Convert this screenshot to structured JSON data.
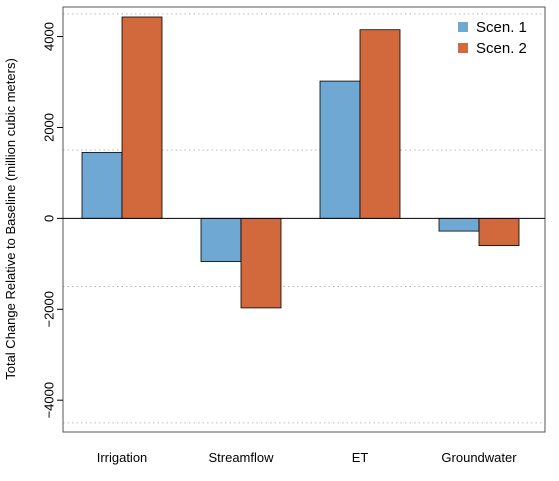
{
  "chart_data": {
    "type": "bar",
    "categories": [
      "Irrigation",
      "Streamflow",
      "ET",
      "Groundwater"
    ],
    "series": [
      {
        "name": "Scen. 1",
        "color": "#6fa8d3",
        "values": [
          1450,
          -950,
          3020,
          -280
        ]
      },
      {
        "name": "Scen. 2",
        "color": "#d2693c",
        "values": [
          4430,
          -1970,
          4150,
          -600
        ]
      }
    ],
    "ylabel": "Total Change Relative to Baseline (million cubic meters)",
    "xlabel": "",
    "title": "",
    "ylim": [
      -4700,
      4650
    ],
    "yticks": [
      -4000,
      -2000,
      0,
      2000,
      4000
    ],
    "ytick_labels": [
      "−4000",
      "−2000",
      "0",
      "2000",
      "4000"
    ],
    "grid": true,
    "grid_style": "dotted",
    "grid_values": [
      4500,
      1500,
      -1500,
      -4500
    ],
    "legend_position": "top-right",
    "zero_line": true
  }
}
